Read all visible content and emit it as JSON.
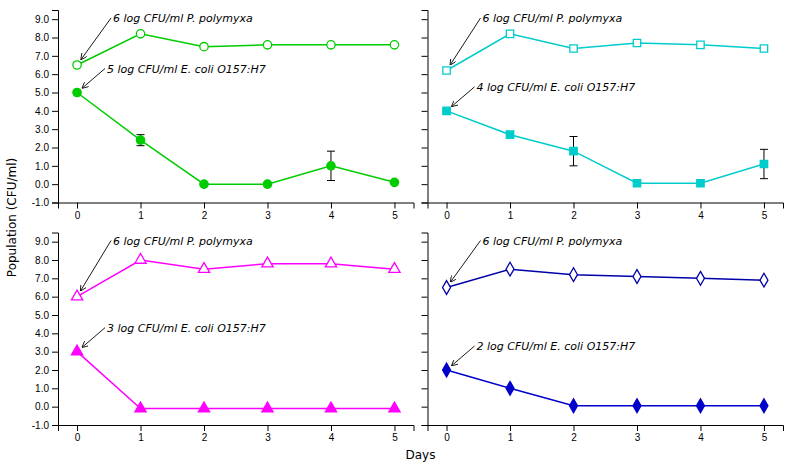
{
  "chart_data": {
    "type": "line",
    "x_label": "Days",
    "y_label": "Population (CFU/ml)",
    "x": [
      0,
      1,
      2,
      3,
      4,
      5
    ],
    "xlim": [
      -0.3,
      5.3
    ],
    "xticks": [
      0,
      1,
      2,
      3,
      4,
      5
    ],
    "ylim": [
      -1.0,
      9.5
    ],
    "yticks": [
      {
        "value": -1.0,
        "label": "-1.0"
      },
      {
        "value": 0.0,
        "label": "0.0"
      },
      {
        "value": 1.0,
        "label": "1.0"
      },
      {
        "value": 2.0,
        "label": "2.0"
      },
      {
        "value": 3.0,
        "label": "3.0"
      },
      {
        "value": 4.0,
        "label": "4.0"
      },
      {
        "value": 5.0,
        "label": "5.0"
      },
      {
        "value": 6.0,
        "label": "6.0"
      },
      {
        "value": 7.0,
        "label": "7.0"
      },
      {
        "value": 8.0,
        "label": "8.0"
      },
      {
        "value": 9.0,
        "label": "9.0"
      }
    ],
    "subplots": [
      {
        "series": [
          {
            "name": "6 log CFU/ml P. polymyxa",
            "color": "#00cc00",
            "marker": "circle-open",
            "values": [
              6.5,
              8.2,
              7.5,
              7.6,
              7.6,
              7.6
            ]
          },
          {
            "name": "5 log CFU/ml E. coli O157:H7",
            "color": "#00cc00",
            "marker": "circle",
            "values": [
              5.0,
              2.4,
              0.0,
              0.0,
              1.0,
              0.1
            ],
            "errors": [
              0,
              0.3,
              0,
              0,
              0.8,
              0
            ]
          }
        ]
      },
      {
        "tick_labels": "x",
        "series": [
          {
            "name": "6 log CFU/ml P. polymyxa",
            "color": "#00cccc",
            "marker": "square-open",
            "values": [
              6.2,
              8.2,
              7.4,
              7.7,
              7.6,
              7.4
            ]
          },
          {
            "name": "4 log CFU/ml E. coli O157:H7",
            "color": "#00cccc",
            "marker": "square",
            "values": [
              4.0,
              2.7,
              1.8,
              0.05,
              0.05,
              1.1
            ],
            "errors": [
              0,
              0,
              0.8,
              0,
              0,
              0.8
            ]
          }
        ]
      },
      {
        "series": [
          {
            "name": "6 log CFU/ml P. polymyxa",
            "color": "#ff00ff",
            "marker": "triangle-open",
            "values": [
              6.0,
              8.0,
              7.5,
              7.8,
              7.8,
              7.5
            ]
          },
          {
            "name": "3 log CFU/ml E. coli O157:H7",
            "color": "#ff00ff",
            "marker": "triangle",
            "values": [
              3.0,
              -0.1,
              -0.1,
              -0.1,
              -0.1,
              -0.1
            ],
            "errors": [
              0,
              0,
              0,
              0,
              0,
              0
            ]
          }
        ]
      },
      {
        "tick_labels": "x",
        "series": [
          {
            "name": "6 log CFU/ml P. polymyxa",
            "color": "#0000aa",
            "marker": "diamond-open",
            "values": [
              6.5,
              7.5,
              7.2,
              7.1,
              7.0,
              6.9
            ]
          },
          {
            "name": "2 log CFU/ml E. coli O157:H7",
            "color": "#0000cc",
            "marker": "diamond",
            "values": [
              2.0,
              1.0,
              0.05,
              0.05,
              0.05,
              0.05
            ],
            "errors": [
              0,
              0,
              0,
              0,
              0,
              0
            ]
          }
        ]
      }
    ]
  }
}
